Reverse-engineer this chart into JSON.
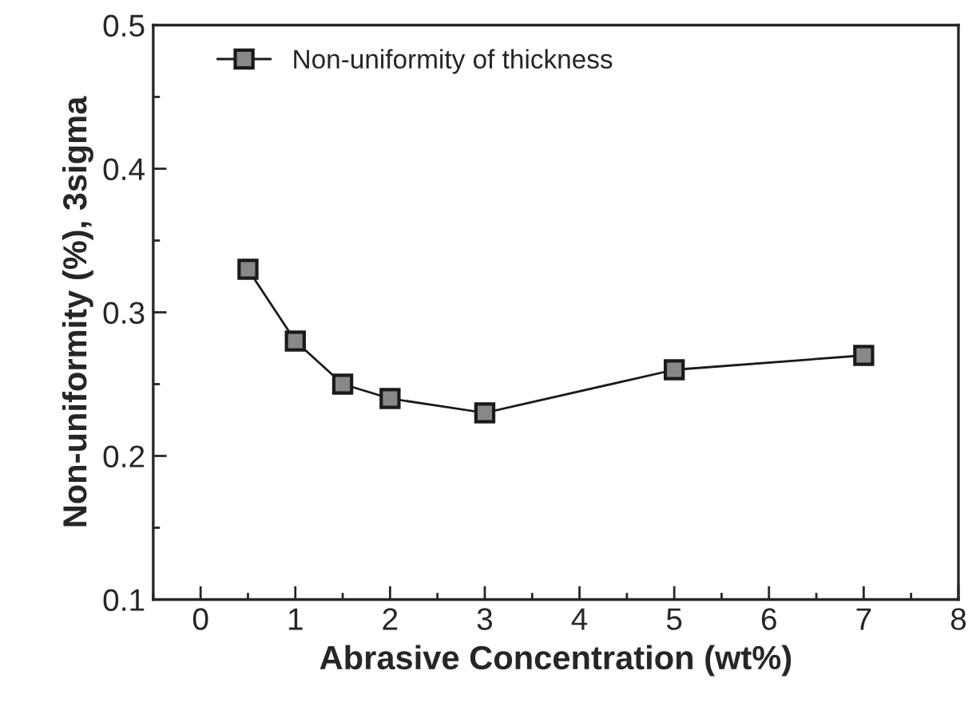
{
  "chart_data": {
    "type": "line",
    "xlabel": "Abrasive Concentration (wt%)",
    "ylabel": "Non-uniformity (%), 3sigma",
    "x": [
      0.5,
      1,
      1.5,
      2,
      3,
      5,
      7
    ],
    "series": [
      {
        "name": "Non-uniformity of thickness",
        "color": "#1a1a1a",
        "values": [
          0.33,
          0.28,
          0.25,
          0.24,
          0.23,
          0.26,
          0.27
        ]
      }
    ],
    "xlim": [
      -0.5,
      8
    ],
    "xticks": [
      0,
      1,
      2,
      3,
      4,
      5,
      6,
      7,
      8
    ],
    "ylim": [
      0.1,
      0.5
    ],
    "yticks": [
      0.1,
      0.2,
      0.3,
      0.4,
      0.5
    ],
    "marker": "square",
    "line_style": "solid",
    "grid": false,
    "legend": "top left"
  }
}
